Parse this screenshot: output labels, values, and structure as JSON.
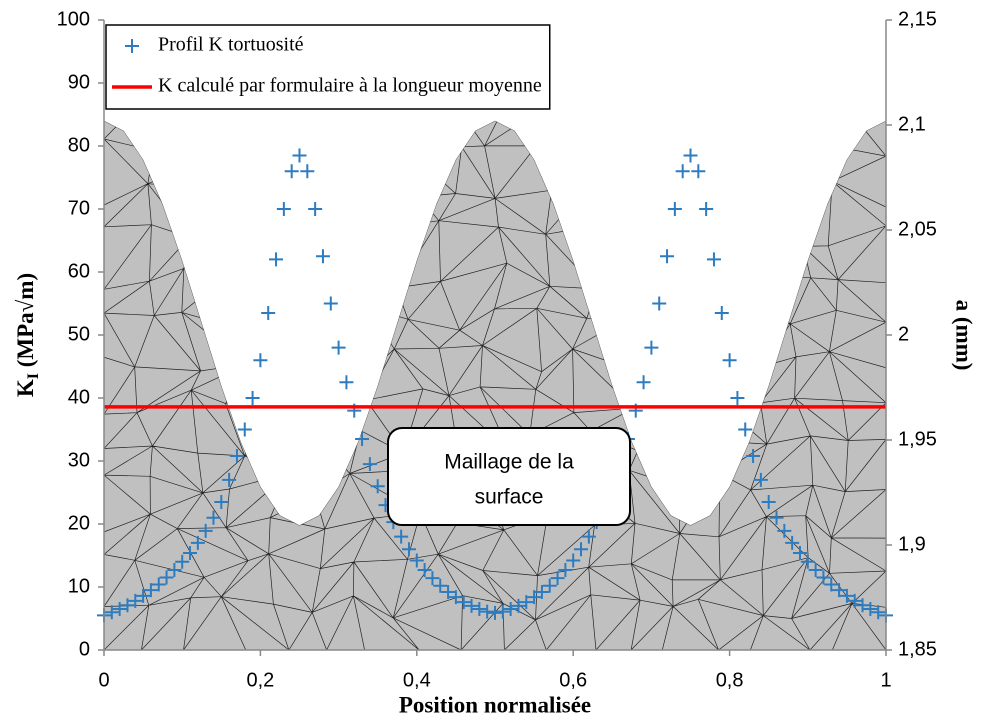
{
  "chart_data": {
    "type": "scatter",
    "xlabel": "Position normalisée",
    "ylabel": {
      "main": "K",
      "sub": "I",
      "rest": " (MPa√m)"
    },
    "y2label": "a (mm)",
    "annotation": [
      "Maillage de la",
      "surface"
    ],
    "xlim": [
      0,
      1
    ],
    "xticks": [
      0,
      {
        "value": 0.2,
        "label": "0,2"
      },
      {
        "value": 0.4,
        "label": "0,4"
      },
      {
        "value": 0.6,
        "label": "0,6"
      },
      {
        "value": 0.8,
        "label": "0,8"
      },
      1
    ],
    "ylim": [
      0,
      100
    ],
    "yticks": [
      0,
      10,
      20,
      30,
      40,
      50,
      60,
      70,
      80,
      90,
      100
    ],
    "y2lim": [
      1.85,
      2.15
    ],
    "y2ticks": [
      {
        "value": 1.85,
        "label": "1,85"
      },
      {
        "value": 1.9,
        "label": "1,9"
      },
      {
        "value": 1.95,
        "label": "1,95"
      },
      2,
      {
        "value": 2.05,
        "label": "2,05"
      },
      {
        "value": 2.1,
        "label": "2,1"
      },
      {
        "value": 2.15,
        "label": "2,15"
      }
    ],
    "legend": "upper left",
    "series": [
      {
        "type": "area",
        "axis": "y2",
        "color": "#c0c0c0",
        "x": [
          0,
          0.025,
          0.05,
          0.075,
          0.1,
          0.125,
          0.15,
          0.175,
          0.2,
          0.225,
          0.25,
          0.275,
          0.3,
          0.325,
          0.35,
          0.375,
          0.4,
          0.425,
          0.45,
          0.475,
          0.5,
          0.525,
          0.55,
          0.575,
          0.6,
          0.625,
          0.65,
          0.675,
          0.7,
          0.725,
          0.75,
          0.775,
          0.8,
          0.825,
          0.85,
          0.875,
          0.9,
          0.925,
          0.95,
          0.975,
          1
        ],
        "values": [
          2.102,
          2.0973,
          2.0836,
          2.0623,
          2.0355,
          2.0057,
          1.9759,
          1.9491,
          1.9278,
          1.9141,
          1.9094,
          1.9141,
          1.9278,
          1.9491,
          1.9759,
          2.0057,
          2.0355,
          2.0623,
          2.0836,
          2.0973,
          2.102,
          2.0973,
          2.0836,
          2.0623,
          2.0355,
          2.0057,
          1.9759,
          1.9491,
          1.9278,
          1.9141,
          1.9094,
          1.9141,
          1.9278,
          1.9491,
          1.9759,
          2.0057,
          2.0355,
          2.0623,
          2.0836,
          2.0973,
          2.102
        ]
      },
      {
        "type": "scatter",
        "name": "Profil K tortuosité",
        "color": "#2e7cc0",
        "x": [
          0,
          0.01,
          0.02,
          0.03,
          0.04,
          0.05,
          0.06,
          0.07,
          0.08,
          0.09,
          0.1,
          0.11,
          0.12,
          0.13,
          0.14,
          0.15,
          0.16,
          0.17,
          0.18,
          0.19,
          0.2,
          0.21,
          0.22,
          0.23,
          0.24,
          0.25,
          0.26,
          0.27,
          0.28,
          0.29,
          0.3,
          0.31,
          0.32,
          0.33,
          0.34,
          0.35,
          0.36,
          0.37,
          0.38,
          0.39,
          0.4,
          0.41,
          0.42,
          0.43,
          0.44,
          0.45,
          0.46,
          0.47,
          0.48,
          0.49,
          0.5,
          0.51,
          0.52,
          0.53,
          0.54,
          0.55,
          0.56,
          0.57,
          0.58,
          0.59,
          0.6,
          0.61,
          0.62,
          0.63,
          0.64,
          0.65,
          0.66,
          0.67,
          0.68,
          0.69,
          0.7,
          0.71,
          0.72,
          0.73,
          0.74,
          0.75,
          0.76,
          0.77,
          0.78,
          0.79,
          0.8,
          0.81,
          0.82,
          0.83,
          0.84,
          0.85,
          0.86,
          0.87,
          0.88,
          0.89,
          0.9,
          0.91,
          0.92,
          0.93,
          0.94,
          0.95,
          0.96,
          0.97,
          0.98,
          0.99,
          1
        ],
        "values": [
          5.5,
          6.0,
          6.5,
          7.1,
          7.8,
          8.6,
          9.5,
          10.4,
          11.5,
          12.7,
          14.0,
          15.4,
          17.0,
          18.9,
          21.0,
          23.5,
          27.0,
          30.8,
          35.0,
          40.0,
          46.0,
          53.5,
          62.0,
          70.0,
          76.0,
          78.5,
          76.0,
          70.0,
          62.5,
          55.0,
          48.0,
          42.5,
          38.0,
          33.5,
          29.5,
          26.0,
          23.0,
          20.3,
          18.0,
          16.0,
          14.2,
          12.7,
          11.4,
          10.2,
          9.2,
          8.4,
          7.6,
          7.0,
          6.5,
          6.1,
          5.9,
          6.1,
          6.5,
          7.0,
          7.6,
          8.4,
          9.2,
          10.2,
          11.4,
          12.7,
          14.2,
          16.0,
          18.0,
          20.3,
          23.0,
          26.0,
          29.5,
          33.5,
          38.0,
          42.5,
          48.0,
          55.0,
          62.5,
          70.0,
          76.0,
          78.5,
          76.0,
          70.0,
          62.0,
          53.5,
          46.0,
          40.0,
          35.0,
          30.8,
          27.0,
          23.5,
          21.0,
          18.9,
          17.0,
          15.4,
          14.0,
          12.7,
          11.5,
          10.4,
          9.5,
          8.6,
          7.8,
          7.1,
          6.5,
          6.0,
          5.5
        ]
      },
      {
        "type": "line",
        "name": "K calculé par formulaire à la longueur moyenne",
        "color": "#ff0000",
        "x": [
          0,
          1
        ],
        "values": [
          38.6,
          38.6
        ]
      }
    ]
  }
}
